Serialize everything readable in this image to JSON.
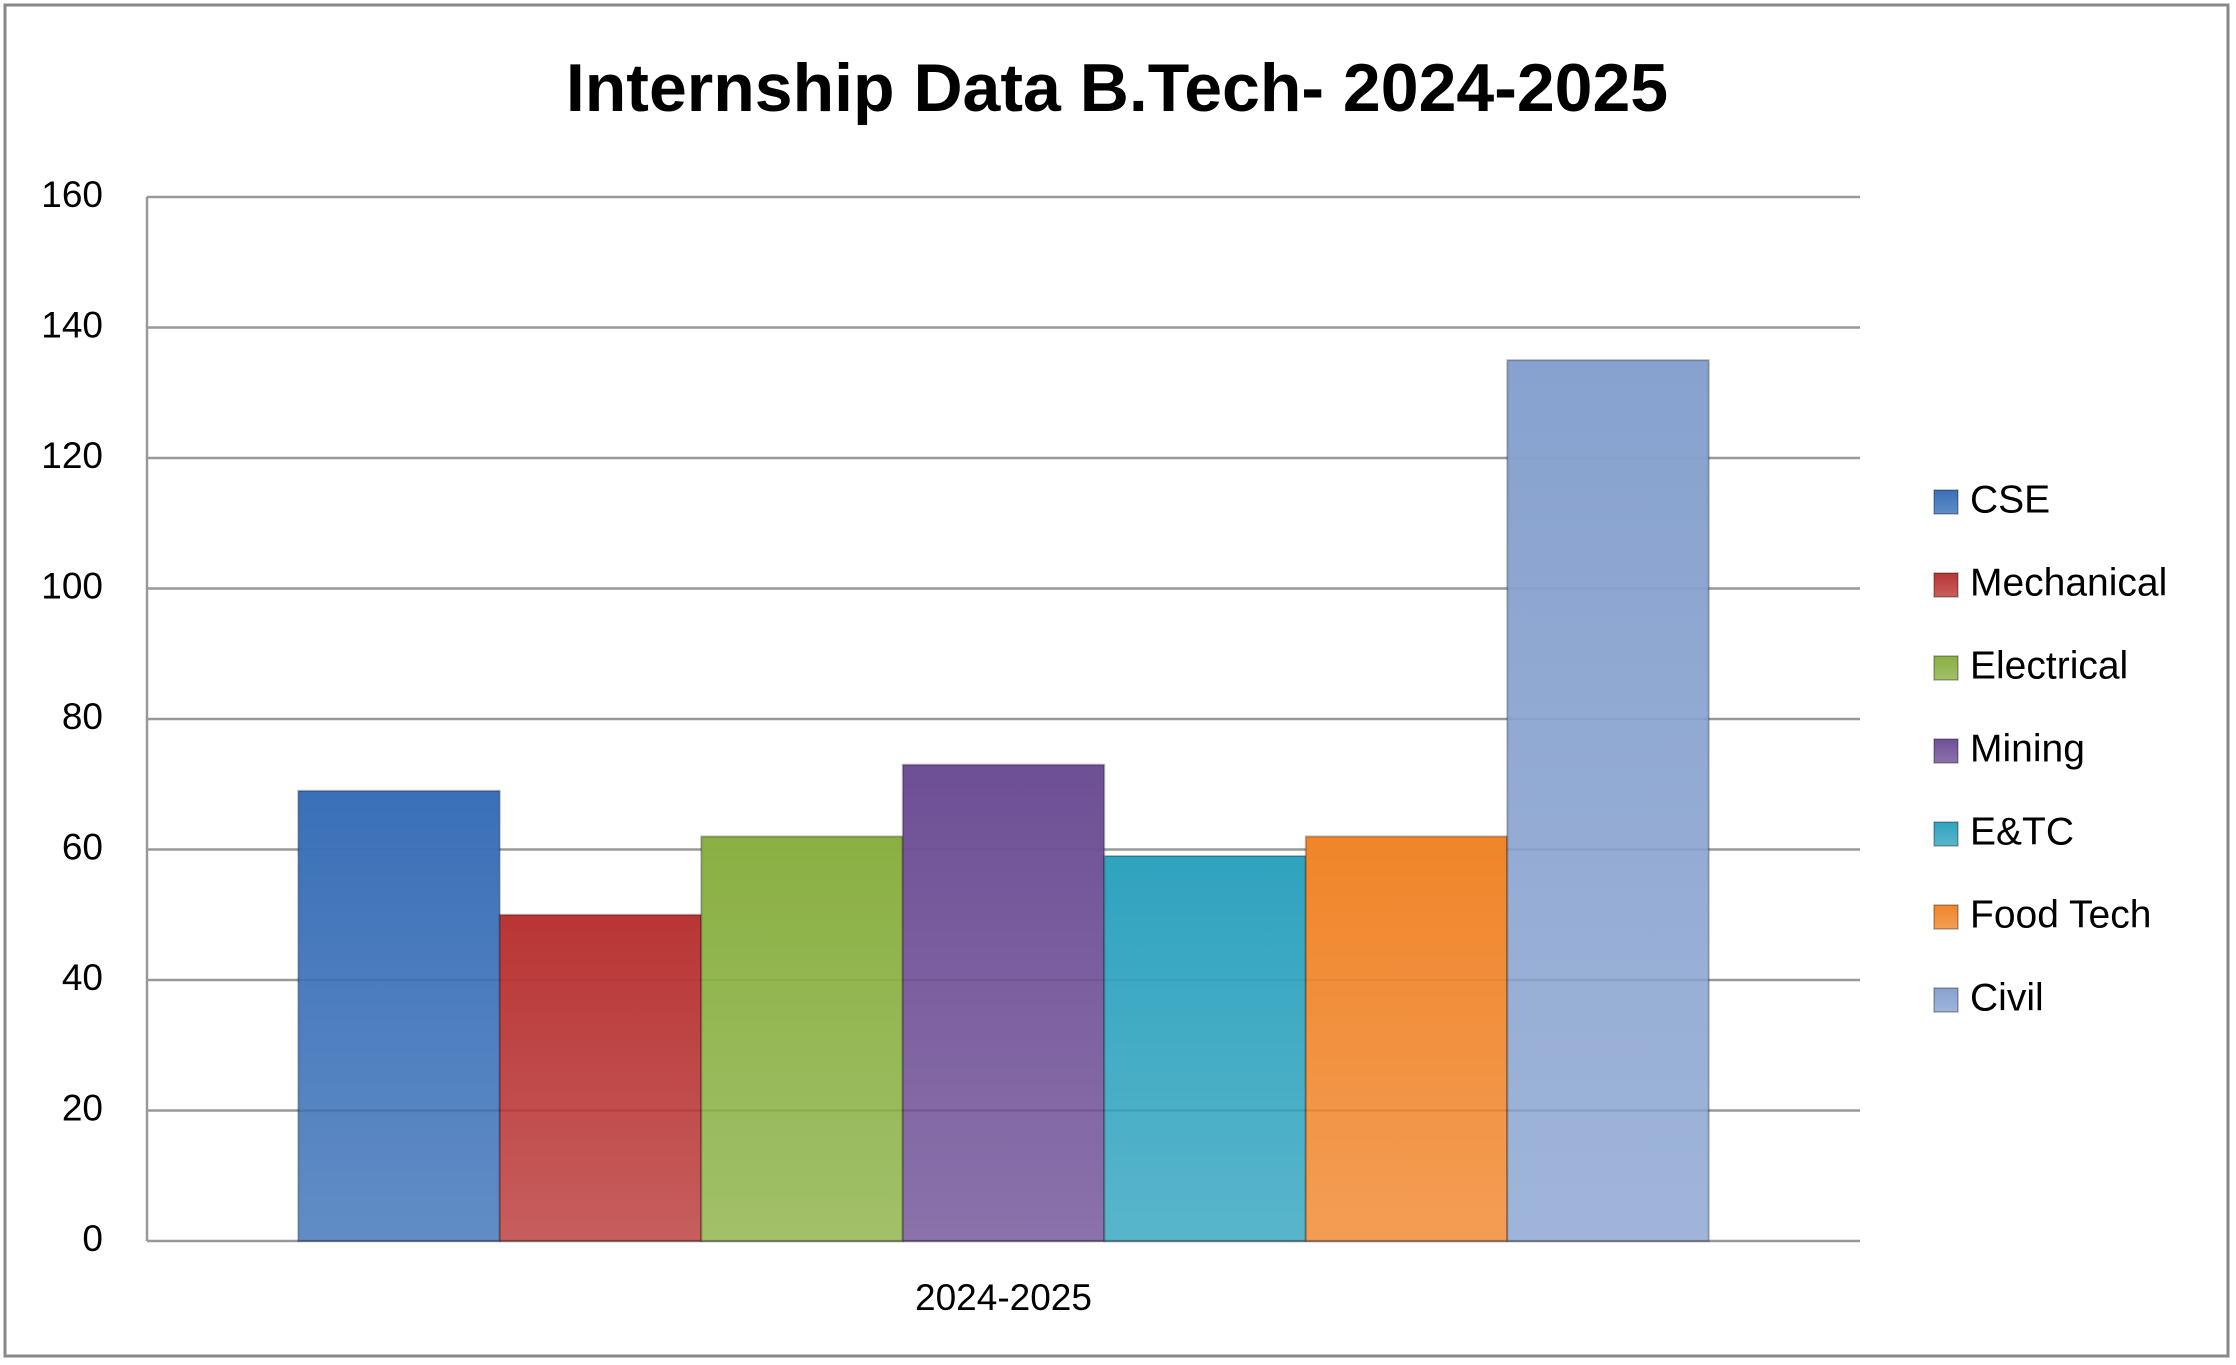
{
  "chart_data": {
    "type": "bar",
    "title": "Internship  Data  B.Tech-  2024-2025",
    "categories": [
      "2024-2025"
    ],
    "series": [
      {
        "name": "CSE",
        "color": "#3a70b8",
        "values": [
          69
        ]
      },
      {
        "name": "Mechanical",
        "color": "#b93535",
        "values": [
          50
        ]
      },
      {
        "name": "Electrical",
        "color": "#8ab043",
        "values": [
          62
        ]
      },
      {
        "name": "Mining",
        "color": "#6e4f96",
        "values": [
          73
        ]
      },
      {
        "name": "E&TC",
        "color": "#2fa3bf",
        "values": [
          59
        ]
      },
      {
        "name": "Food Tech",
        "color": "#f0852a",
        "values": [
          62
        ]
      },
      {
        "name": "Civil",
        "color": "#87a2cf",
        "values": [
          135
        ]
      }
    ],
    "ylim": [
      0,
      160
    ],
    "yticks": [
      0,
      20,
      40,
      60,
      80,
      100,
      120,
      140,
      160
    ],
    "grid": true,
    "legend": "right"
  }
}
